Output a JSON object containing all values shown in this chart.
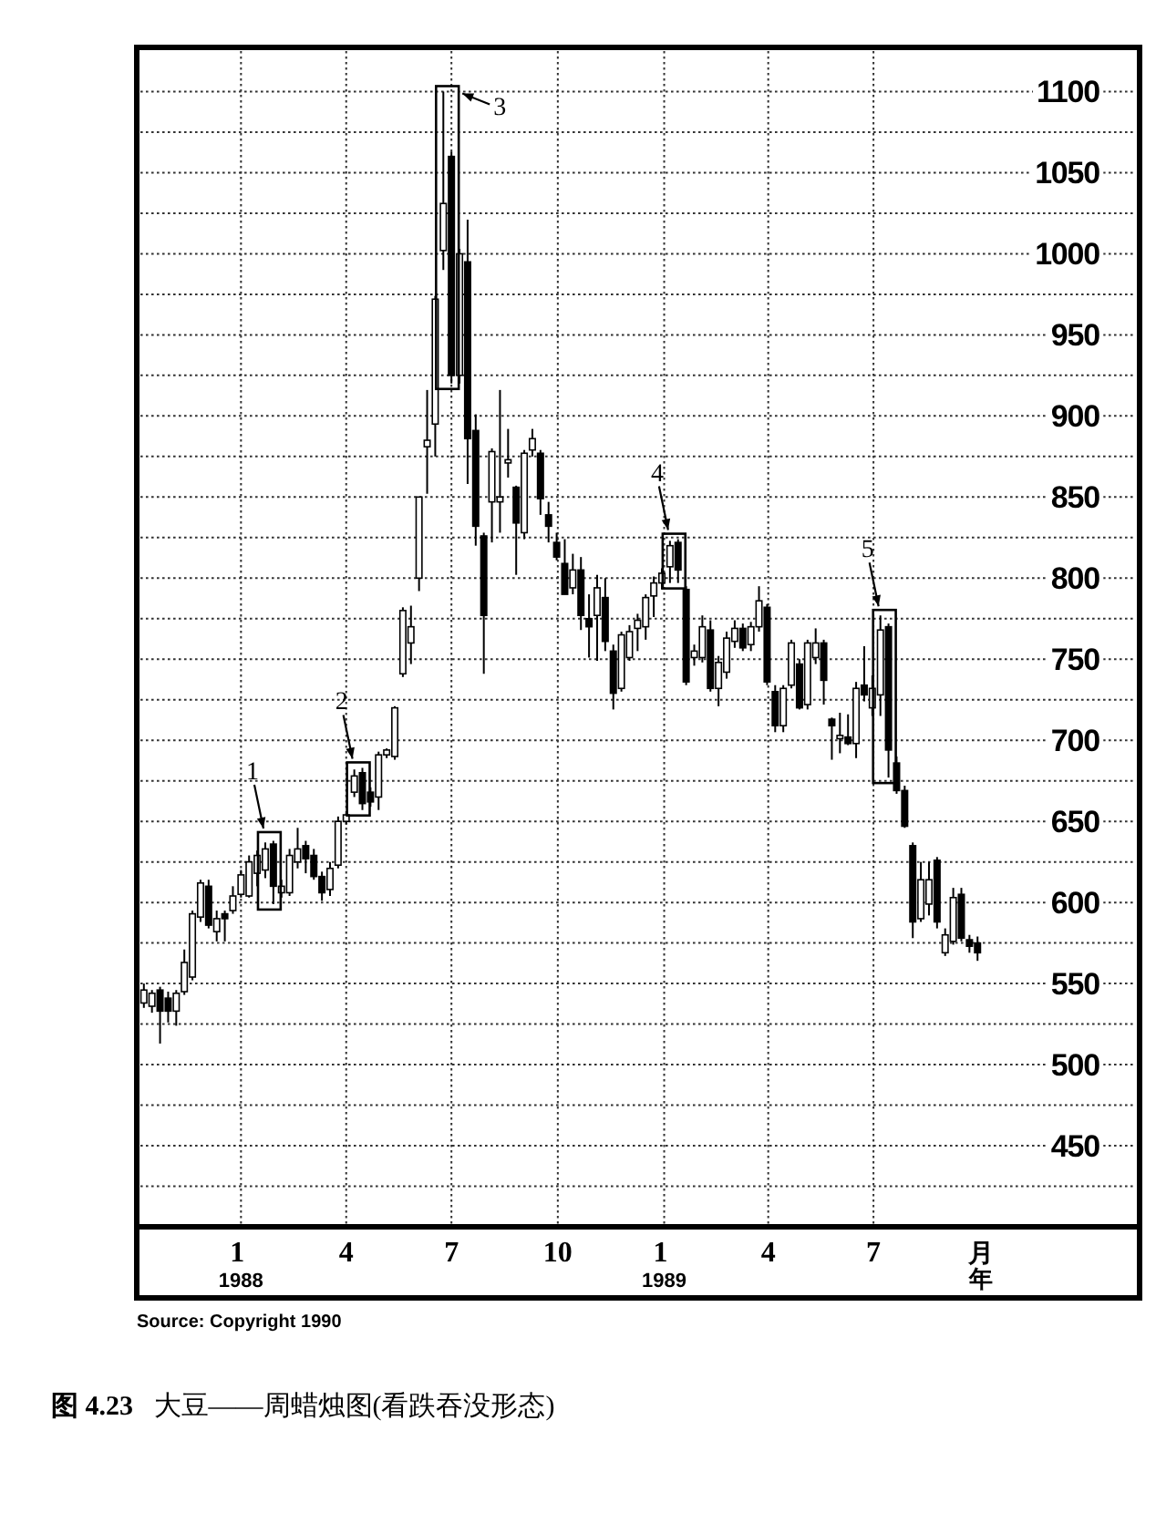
{
  "chart_data": {
    "type": "candlestick",
    "title": "**图 4.23**   大豆——周蜡烛图(看跌吞没形态)",
    "x": [
      "1987-10-09",
      "1987-10-16",
      "1987-10-23",
      "1987-10-30",
      "1987-11-06",
      "1987-11-13",
      "1987-11-20",
      "1987-11-27",
      "1987-12-04",
      "1987-12-11",
      "1987-12-18",
      "1987-12-25",
      "1988-01-01",
      "1988-01-08",
      "1988-01-15",
      "1988-01-22",
      "1988-01-29",
      "1988-02-05",
      "1988-02-12",
      "1988-02-19",
      "1988-02-26",
      "1988-03-04",
      "1988-03-11",
      "1988-03-18",
      "1988-03-25",
      "1988-04-01",
      "1988-04-08",
      "1988-04-15",
      "1988-04-22",
      "1988-04-29",
      "1988-05-06",
      "1988-05-13",
      "1988-05-20",
      "1988-05-27",
      "1988-06-03",
      "1988-06-10",
      "1988-06-17",
      "1988-06-24",
      "1988-07-01",
      "1988-07-08",
      "1988-07-15",
      "1988-07-22",
      "1988-07-29",
      "1988-08-05",
      "1988-08-12",
      "1988-08-19",
      "1988-08-26",
      "1988-09-02",
      "1988-09-09",
      "1988-09-16",
      "1988-09-23",
      "1988-09-30",
      "1988-10-07",
      "1988-10-14",
      "1988-10-21",
      "1988-10-28",
      "1988-11-04",
      "1988-11-11",
      "1988-11-18",
      "1988-11-25",
      "1988-12-02",
      "1988-12-09",
      "1988-12-16",
      "1988-12-23",
      "1988-12-30",
      "1989-01-06",
      "1989-01-13",
      "1989-01-20",
      "1989-01-27",
      "1989-02-03",
      "1989-02-10",
      "1989-02-17",
      "1989-02-24",
      "1989-03-03",
      "1989-03-10",
      "1989-03-17",
      "1989-03-24",
      "1989-03-31",
      "1989-04-07",
      "1989-04-14",
      "1989-04-21",
      "1989-04-28",
      "1989-05-05",
      "1989-05-12",
      "1989-05-19",
      "1989-05-26",
      "1989-06-02",
      "1989-06-09",
      "1989-06-16",
      "1989-06-23",
      "1989-06-30",
      "1989-07-07",
      "1989-07-14",
      "1989-07-21",
      "1989-07-28",
      "1989-08-04",
      "1989-08-11",
      "1989-08-18",
      "1989-08-25",
      "1989-09-01",
      "1989-09-08",
      "1989-09-15",
      "1989-09-22",
      "1989-09-29"
    ],
    "ohlc": [
      [
        538,
        550,
        535,
        546
      ],
      [
        536,
        546,
        532,
        544
      ],
      [
        546,
        548,
        513,
        533
      ],
      [
        541,
        545,
        526,
        533
      ],
      [
        533,
        546,
        524,
        544
      ],
      [
        545,
        571,
        543,
        563
      ],
      [
        554,
        595,
        552,
        593
      ],
      [
        591,
        614,
        588,
        612
      ],
      [
        610,
        614,
        584,
        586
      ],
      [
        582,
        595,
        576,
        590
      ],
      [
        593,
        595,
        576,
        590
      ],
      [
        595,
        610,
        593,
        604
      ],
      [
        605,
        620,
        603,
        617
      ],
      [
        604,
        629,
        603,
        625
      ],
      [
        618,
        632,
        610,
        629
      ],
      [
        620,
        637,
        615,
        633
      ],
      [
        636,
        638,
        599,
        610
      ],
      [
        606,
        614,
        603,
        610
      ],
      [
        606,
        633,
        604,
        629
      ],
      [
        625,
        646,
        621,
        633
      ],
      [
        635,
        638,
        618,
        627
      ],
      [
        629,
        633,
        614,
        616
      ],
      [
        616,
        619,
        601,
        606
      ],
      [
        608,
        625,
        604,
        621
      ],
      [
        623,
        653,
        621,
        650
      ],
      [
        650,
        655,
        648,
        654
      ],
      [
        668,
        682,
        665,
        678
      ],
      [
        680,
        683,
        657,
        661
      ],
      [
        668,
        671,
        659,
        662
      ],
      [
        665,
        693,
        657,
        691
      ],
      [
        691,
        695,
        689,
        694
      ],
      [
        690,
        721,
        688,
        720
      ],
      [
        741,
        782,
        739,
        780
      ],
      [
        760,
        783,
        747,
        770
      ],
      [
        800,
        850,
        792,
        850
      ],
      [
        881,
        916,
        852,
        885
      ],
      [
        895,
        974,
        875,
        972
      ],
      [
        1002,
        1100,
        990,
        1031
      ],
      [
        1060,
        1063,
        920,
        925
      ],
      [
        925,
        1003,
        920,
        1000
      ],
      [
        995,
        1021,
        858,
        886
      ],
      [
        891,
        901,
        820,
        832
      ],
      [
        826,
        828,
        741,
        777
      ],
      [
        847,
        880,
        822,
        878
      ],
      [
        847,
        916,
        828,
        850
      ],
      [
        871,
        892,
        862,
        873
      ],
      [
        856,
        857,
        802,
        834
      ],
      [
        828,
        879,
        824,
        877
      ],
      [
        879,
        892,
        875,
        886
      ],
      [
        877,
        879,
        839,
        849
      ],
      [
        839,
        847,
        822,
        832
      ],
      [
        822,
        828,
        811,
        813
      ],
      [
        809,
        824,
        790,
        790
      ],
      [
        794,
        815,
        790,
        805
      ],
      [
        805,
        813,
        768,
        777
      ],
      [
        775,
        790,
        751,
        770
      ],
      [
        777,
        802,
        749,
        794
      ],
      [
        788,
        800,
        755,
        761
      ],
      [
        755,
        759,
        719,
        729
      ],
      [
        732,
        767,
        730,
        765
      ],
      [
        751,
        771,
        749,
        767
      ],
      [
        769,
        778,
        755,
        774
      ],
      [
        770,
        790,
        762,
        788
      ],
      [
        789,
        801,
        776,
        797
      ],
      [
        797,
        806,
        793,
        803
      ],
      [
        807,
        823,
        797,
        820
      ],
      [
        822,
        824,
        797,
        805
      ],
      [
        793,
        795,
        734,
        736
      ],
      [
        751,
        759,
        746,
        755
      ],
      [
        751,
        777,
        748,
        770
      ],
      [
        768,
        774,
        730,
        732
      ],
      [
        732,
        752,
        721,
        748
      ],
      [
        742,
        767,
        738,
        763
      ],
      [
        761,
        774,
        757,
        769
      ],
      [
        769,
        772,
        755,
        757
      ],
      [
        759,
        773,
        755,
        770
      ],
      [
        770,
        795,
        767,
        786
      ],
      [
        782,
        784,
        734,
        736
      ],
      [
        730,
        734,
        705,
        709
      ],
      [
        709,
        734,
        705,
        732
      ],
      [
        734,
        762,
        732,
        760
      ],
      [
        747,
        750,
        719,
        720
      ],
      [
        722,
        762,
        719,
        760
      ],
      [
        751,
        769,
        747,
        760
      ],
      [
        760,
        762,
        722,
        737
      ],
      [
        713,
        714,
        688,
        709
      ],
      [
        701,
        717,
        692,
        703
      ],
      [
        702,
        716,
        697,
        698
      ],
      [
        698,
        736,
        689,
        732
      ],
      [
        734,
        758,
        724,
        728
      ],
      [
        720,
        740,
        715,
        732
      ],
      [
        728,
        777,
        715,
        768
      ],
      [
        770,
        772,
        677,
        694
      ],
      [
        686,
        690,
        667,
        669
      ],
      [
        669,
        672,
        646,
        647
      ],
      [
        635,
        637,
        578,
        588
      ],
      [
        590,
        625,
        588,
        614
      ],
      [
        599,
        625,
        592,
        614
      ],
      [
        626,
        628,
        584,
        588
      ],
      [
        569,
        584,
        567,
        580
      ],
      [
        576,
        609,
        574,
        603
      ],
      [
        605,
        609,
        576,
        578
      ],
      [
        577,
        580,
        569,
        573
      ],
      [
        575,
        579,
        564,
        569
      ]
    ],
    "xlim": [
      "1987-10-06",
      "1990-02-13"
    ],
    "xticks": [
      {
        "value": "1988-01-01",
        "label": "1\n1988"
      },
      {
        "value": "1988-04-01",
        "label": "4"
      },
      {
        "value": "1988-07-01",
        "label": "7"
      },
      {
        "value": "1988-10-01",
        "label": "10"
      },
      {
        "value": "1989-01-01",
        "label": "1\n1989"
      },
      {
        "value": "1989-04-01",
        "label": "4"
      },
      {
        "value": "1989-07-01",
        "label": "7"
      }
    ],
    "xlabel": "月年",
    "ylim": [
      400,
      1125
    ],
    "yticks": [
      {
        "value": 425,
        "label": null
      },
      450,
      {
        "value": 475,
        "label": null
      },
      500,
      {
        "value": 525,
        "label": null
      },
      550,
      {
        "value": 575,
        "label": null
      },
      600,
      {
        "value": 625,
        "label": null
      },
      650,
      {
        "value": 675,
        "label": null
      },
      700,
      {
        "value": 725,
        "label": null
      },
      750,
      {
        "value": 775,
        "label": null
      },
      800,
      {
        "value": 825,
        "label": null
      },
      850,
      {
        "value": 875,
        "label": null
      },
      900,
      {
        "value": 925,
        "label": null
      },
      950,
      {
        "value": 975,
        "label": null
      },
      1000,
      {
        "value": 1025,
        "label": null
      },
      1050,
      {
        "value": 1075,
        "label": null
      },
      1100
    ],
    "grid": true,
    "annotations": [
      {
        "text": "1",
        "x": "1988-01-29",
        "y": 640
      },
      {
        "text": "2",
        "x": "1988-04-15",
        "y": 683
      },
      {
        "text": "3",
        "x": "1988-07-01",
        "y": 1100
      },
      {
        "text": "4",
        "x": "1989-01-13",
        "y": 824
      },
      {
        "text": "5",
        "x": "1989-07-14",
        "y": 777
      },
      "Source: Copyright 1990"
    ]
  }
}
